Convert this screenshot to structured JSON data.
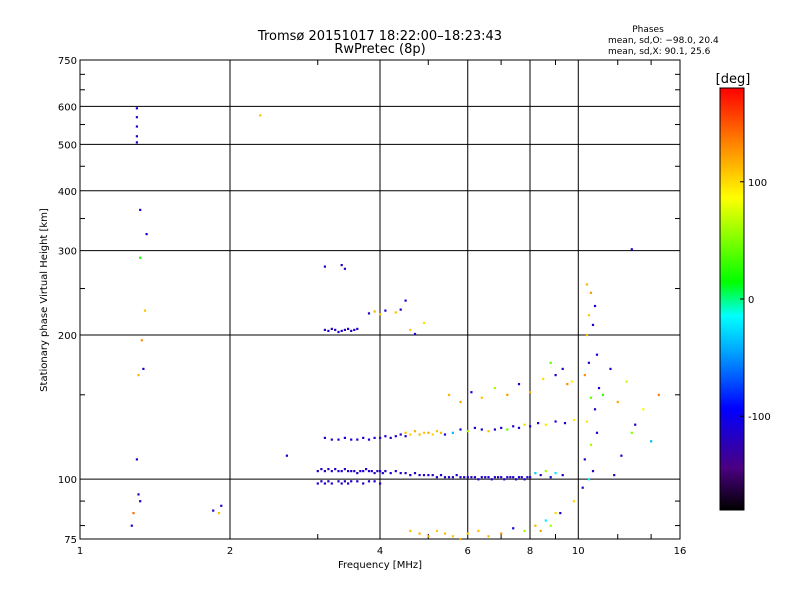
{
  "chart_data": {
    "type": "scatter",
    "title": "Tromsø 20151017 18:22:00–18:23:43",
    "subtitle": "RwPretec (8p)",
    "legend_note": {
      "heading": "Phases",
      "line1": "mean, sd,O: −98.0, 20.4",
      "line2": "mean, sd,X:  90.1, 25.6"
    },
    "xlabel": "Frequency [MHz]",
    "ylabel": "Stationary phase Virtual Height [km]",
    "x_scale": "log",
    "y_scale": "log",
    "xlim": [
      1,
      16
    ],
    "ylim": [
      75,
      750
    ],
    "x_ticks": [
      1,
      2,
      4,
      6,
      8,
      10,
      16
    ],
    "y_ticks": [
      75,
      100,
      200,
      300,
      400,
      500,
      600,
      750
    ],
    "grid": true,
    "colorbar": {
      "label": "[deg]",
      "range": [
        -180,
        180
      ],
      "ticks": [
        100,
        0,
        -100
      ]
    },
    "series": [
      {
        "x": [
          3.0,
          3.05,
          3.1,
          3.15,
          3.2,
          3.25,
          3.3,
          3.35,
          3.4,
          3.45,
          3.5,
          3.55,
          3.6,
          3.65,
          3.7,
          3.75,
          3.8,
          3.85,
          3.9,
          3.95,
          4.0,
          4.05,
          4.1,
          4.2,
          4.3,
          4.4,
          4.5,
          4.6,
          4.7,
          4.8,
          4.9,
          5.0,
          5.1,
          5.2,
          5.3,
          5.4,
          5.5,
          5.6,
          5.7,
          5.8,
          5.9,
          6.0,
          6.1,
          6.2,
          6.3,
          6.4,
          6.5,
          6.6,
          6.7,
          6.8,
          6.9,
          7.0,
          7.1,
          7.2,
          7.3,
          7.4,
          7.5,
          7.6,
          7.7,
          7.8,
          7.9,
          8.0,
          8.2,
          8.4,
          8.6,
          8.8,
          9.0,
          9.3
        ],
        "y": [
          104,
          105,
          104,
          105,
          104,
          105,
          104,
          104,
          105,
          104,
          104,
          104,
          103,
          104,
          104,
          105,
          104,
          104,
          103,
          104,
          104,
          103,
          104,
          103,
          104,
          103,
          103,
          102,
          103,
          102,
          102,
          102,
          102,
          101,
          102,
          101,
          101,
          101,
          102,
          101,
          101,
          101,
          101,
          101,
          100,
          101,
          101,
          101,
          100,
          101,
          101,
          101,
          100,
          101,
          101,
          101,
          100,
          101,
          101,
          100,
          101,
          101,
          103,
          102,
          104,
          101,
          103,
          102
        ],
        "phase": [
          -115,
          -112,
          -118,
          -110,
          -116,
          -114,
          -120,
          -111,
          -117,
          -113,
          -118,
          -112,
          -115,
          -119,
          -110,
          -116,
          -114,
          -112,
          -118,
          -115,
          -113,
          -110,
          -117,
          -112,
          -116,
          -114,
          -118,
          -111,
          -115,
          -113,
          -117,
          -112,
          -116,
          -114,
          -110,
          -118,
          -113,
          -115,
          -112,
          -117,
          -114,
          -111,
          -116,
          -113,
          -118,
          -112,
          -115,
          -110,
          -117,
          -114,
          -116,
          -112,
          -118,
          -113,
          -115,
          -111,
          -117,
          -114,
          -112,
          -116,
          -113,
          -118,
          -30,
          -115,
          60,
          -112,
          -20,
          -114
        ]
      },
      {
        "x": [
          3.0,
          3.05,
          3.1,
          3.15,
          3.2,
          3.3,
          3.35,
          3.4,
          3.45,
          3.5,
          3.6,
          3.7,
          3.8,
          3.9,
          4.0
        ],
        "y": [
          98,
          99,
          98,
          99,
          98,
          99,
          98,
          99,
          98,
          99,
          99,
          98,
          99,
          99,
          98
        ],
        "phase": [
          -112,
          -116,
          -114,
          -118,
          -110,
          -115,
          -113,
          -117,
          -111,
          -116,
          -114,
          -112,
          -118,
          -115,
          -113
        ]
      },
      {
        "x": [
          3.1,
          3.2,
          3.3,
          3.4,
          3.5,
          3.6,
          3.7,
          3.8,
          3.9,
          4.0,
          4.1,
          4.2,
          4.3,
          4.4,
          4.5
        ],
        "y": [
          122,
          121,
          121,
          122,
          121,
          121,
          122,
          121,
          122,
          122,
          123,
          122,
          123,
          124,
          123
        ],
        "phase": [
          -115,
          -112,
          -117,
          -113,
          -116,
          -114,
          -118,
          -111,
          -115,
          -113,
          -110,
          -117,
          -112,
          -116,
          -114
        ]
      },
      {
        "x": [
          4.5,
          4.6,
          4.7,
          4.8,
          4.9,
          5.0,
          5.1,
          5.2,
          5.3
        ],
        "y": [
          125,
          124,
          126,
          124,
          125,
          125,
          124,
          126,
          125
        ],
        "phase": [
          110,
          105,
          115,
          112,
          108,
          118,
          104,
          111,
          114
        ]
      },
      {
        "x": [
          5.4,
          5.6,
          5.8,
          6.0,
          6.2,
          6.4,
          6.6,
          6.8,
          7.0,
          7.2,
          7.4,
          7.6,
          7.8,
          8.0,
          8.3,
          8.6,
          9.0,
          9.4,
          9.8
        ],
        "y": [
          124,
          125,
          127,
          126,
          128,
          127,
          126,
          127,
          128,
          127,
          129,
          128,
          130,
          129,
          131,
          130,
          132,
          131,
          133
        ],
        "phase": [
          -110,
          -40,
          -115,
          60,
          -113,
          -112,
          110,
          -116,
          -114,
          40,
          -118,
          -111,
          100,
          -115,
          -113,
          95,
          -117,
          -112,
          90
        ]
      },
      {
        "x": [
          3.1,
          3.15,
          3.2,
          3.25,
          3.3,
          3.35,
          3.4,
          3.45,
          3.5,
          3.55,
          3.6
        ],
        "y": [
          205,
          204,
          206,
          205,
          203,
          204,
          205,
          206,
          204,
          205,
          206
        ],
        "phase": [
          -116,
          -113,
          -118,
          -111,
          -115,
          -114,
          -117,
          -112,
          -116,
          -113,
          -115
        ]
      },
      {
        "x": [
          3.8,
          3.9,
          4.0,
          4.1,
          4.3,
          4.4,
          4.5,
          4.6,
          4.7,
          4.9
        ],
        "y": [
          222,
          224,
          221,
          225,
          223,
          226,
          236,
          205,
          201,
          212
        ],
        "phase": [
          -114,
          115,
          110,
          -112,
          112,
          -116,
          -110,
          105,
          -113,
          95
        ]
      },
      {
        "x": [
          1.3,
          1.3,
          1.3,
          1.3,
          1.3,
          1.32,
          1.36,
          1.32,
          1.35,
          1.33,
          1.34,
          1.31,
          1.3,
          1.31,
          1.32,
          1.28,
          1.27
        ],
        "y": [
          595,
          570,
          545,
          520,
          505,
          365,
          325,
          290,
          225,
          195,
          170,
          165,
          110,
          93,
          90,
          85,
          80
        ],
        "phase": [
          -110,
          -115,
          -112,
          -118,
          -114,
          -116,
          -113,
          20,
          110,
          130,
          -112,
          115,
          -115,
          -116,
          -114,
          140,
          -118
        ]
      },
      {
        "x": [
          1.85,
          1.9,
          1.92,
          2.3,
          2.6,
          3.1,
          3.35,
          3.4
        ],
        "y": [
          86,
          85,
          88,
          575,
          112,
          278,
          280,
          275
        ],
        "phase": [
          -115,
          110,
          -118,
          112,
          -114,
          -113,
          -117,
          -112
        ]
      },
      {
        "x": [
          10.4,
          10.6,
          10.8,
          10.5,
          10.7,
          10.4,
          10.9,
          10.5,
          10.3,
          11.0,
          10.6,
          10.8,
          10.4,
          10.9,
          10.6,
          10.3,
          10.7,
          10.5,
          11.2,
          11.6,
          12.0,
          12.5,
          13.0,
          13.5,
          14.0,
          14.5,
          12.2,
          12.8,
          11.8,
          10.2,
          9.8,
          9.2,
          8.8,
          8.4
        ],
        "y": [
          255,
          245,
          230,
          220,
          210,
          200,
          182,
          175,
          165,
          155,
          148,
          140,
          132,
          125,
          118,
          110,
          104,
          100,
          150,
          170,
          145,
          160,
          130,
          140,
          120,
          150,
          112,
          125,
          102,
          96,
          90,
          85,
          80,
          78
        ],
        "phase": [
          115,
          125,
          -110,
          105,
          -114,
          110,
          -112,
          -115,
          130,
          -113,
          40,
          -117,
          95,
          -112,
          60,
          -116,
          -114,
          -20,
          30,
          -110,
          120,
          70,
          -115,
          90,
          -40,
          135,
          -113,
          50,
          -118,
          -112,
          100,
          -115,
          60,
          120
        ]
      },
      {
        "x": [
          4.6,
          4.8,
          5.0,
          5.2,
          5.4,
          5.6,
          5.8,
          6.0,
          6.3,
          6.6,
          7.0,
          7.4,
          7.8,
          8.2,
          8.6,
          9.0
        ],
        "y": [
          78,
          77,
          76,
          78,
          77,
          76,
          75,
          77,
          78,
          76,
          77,
          79,
          78,
          80,
          82,
          85
        ],
        "phase": [
          110,
          115,
          120,
          105,
          112,
          108,
          118,
          104,
          111,
          114,
          130,
          -110,
          60,
          115,
          -20,
          100
        ]
      },
      {
        "x": [
          5.5,
          5.8,
          6.1,
          6.4,
          6.8,
          7.2,
          7.6,
          8.0,
          8.5,
          9.0,
          9.5,
          8.8,
          9.3,
          9.7,
          12.8
        ],
        "y": [
          150,
          145,
          152,
          148,
          155,
          150,
          158,
          152,
          162,
          165,
          158,
          175,
          170,
          160,
          302
        ],
        "phase": [
          115,
          120,
          -110,
          110,
          60,
          125,
          -112,
          118,
          100,
          -114,
          130,
          40,
          -116,
          90,
          -114
        ]
      }
    ]
  }
}
